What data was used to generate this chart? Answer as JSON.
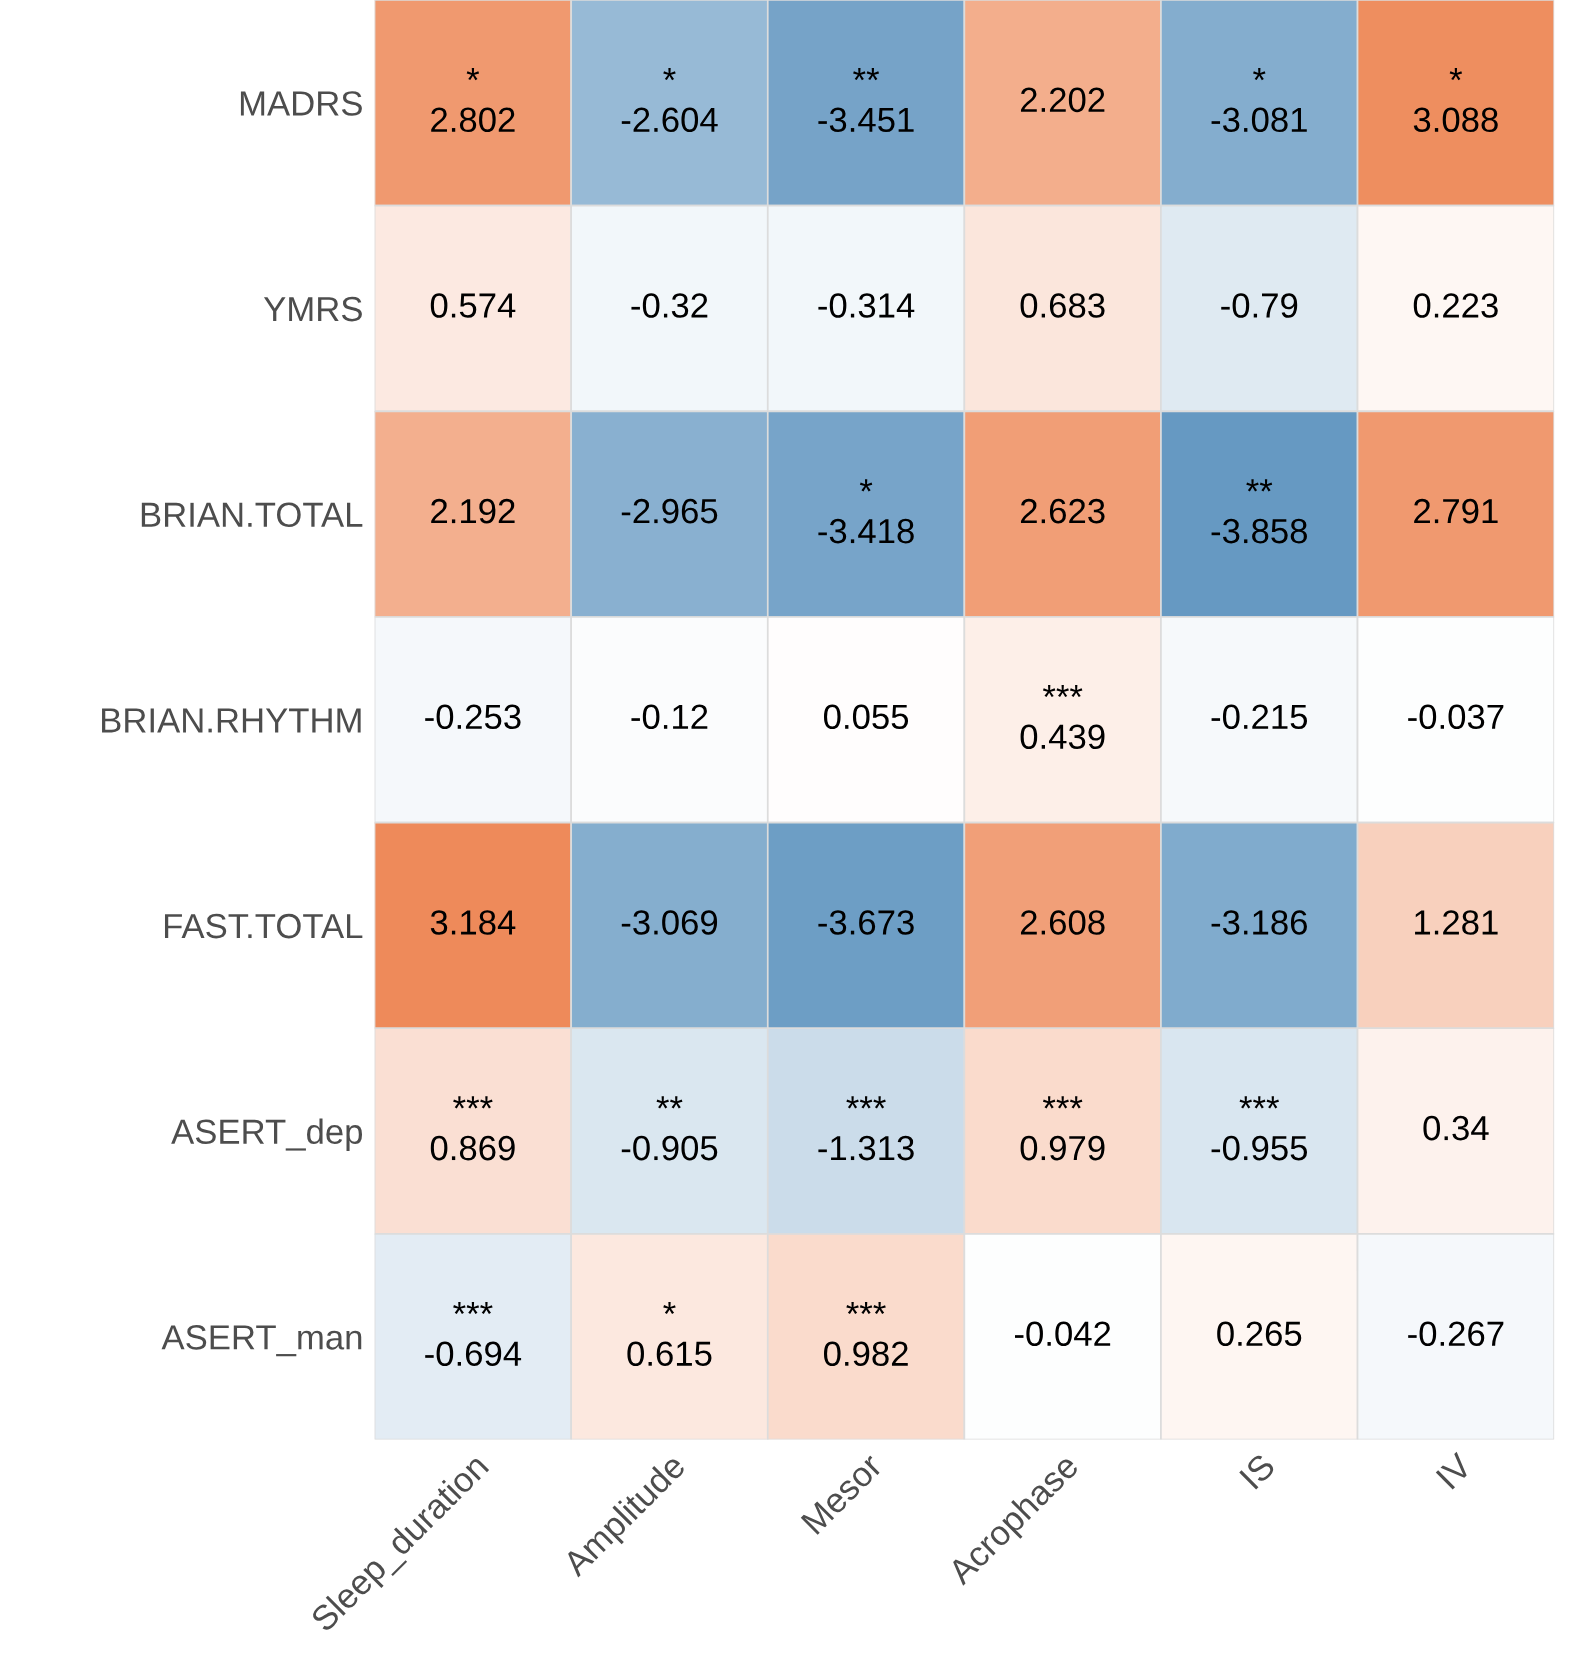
{
  "chart_data": {
    "type": "heatmap",
    "categories": [
      "Sleep_duration",
      "Amplitude",
      "Mesor",
      "Acrophase",
      "IS",
      "IV"
    ],
    "y_categories": [
      "MADRS",
      "YMRS",
      "BRIAN.TOTAL",
      "BRIAN.RHYTHM",
      "FAST.TOTAL",
      "ASERT_dep",
      "ASERT_man"
    ],
    "cells": [
      [
        2.802,
        -2.604,
        -3.451,
        2.202,
        -3.081,
        3.088
      ],
      [
        0.574,
        -0.32,
        -0.314,
        0.683,
        -0.79,
        0.223
      ],
      [
        2.192,
        -2.965,
        -3.418,
        2.623,
        -3.858,
        2.791
      ],
      [
        -0.253,
        -0.12,
        0.055,
        0.439,
        -0.215,
        -0.037
      ],
      [
        3.184,
        -3.069,
        -3.673,
        2.608,
        -3.186,
        1.281
      ],
      [
        0.869,
        -0.905,
        -1.313,
        0.979,
        -0.955,
        0.34
      ],
      [
        -0.694,
        0.615,
        0.982,
        -0.042,
        0.265,
        -0.267
      ]
    ],
    "cell_labels": [
      [
        "*\n2.802",
        "*\n-2.604",
        "**\n-3.451",
        "2.202",
        "*\n-3.081",
        "*\n3.088"
      ],
      [
        "0.574",
        "-0.32",
        "-0.314",
        "0.683",
        "-0.79",
        "0.223"
      ],
      [
        "2.192",
        "-2.965",
        "*\n-3.418",
        "2.623",
        "**\n-3.858",
        "2.791"
      ],
      [
        "-0.253",
        "-0.12",
        "0.055",
        "***\n0.439",
        "-0.215",
        "-0.037"
      ],
      [
        "3.184",
        "-3.069",
        "-3.673",
        "2.608",
        "-3.186",
        "1.281"
      ],
      [
        "***\n0.869",
        "**\n-0.905",
        "***\n-1.313",
        "***\n0.979",
        "***\n-0.955",
        "0.34"
      ],
      [
        "***\n-0.694",
        "*\n0.615",
        "***\n0.982",
        "-0.042",
        "0.265",
        "-0.267"
      ]
    ]
  }
}
